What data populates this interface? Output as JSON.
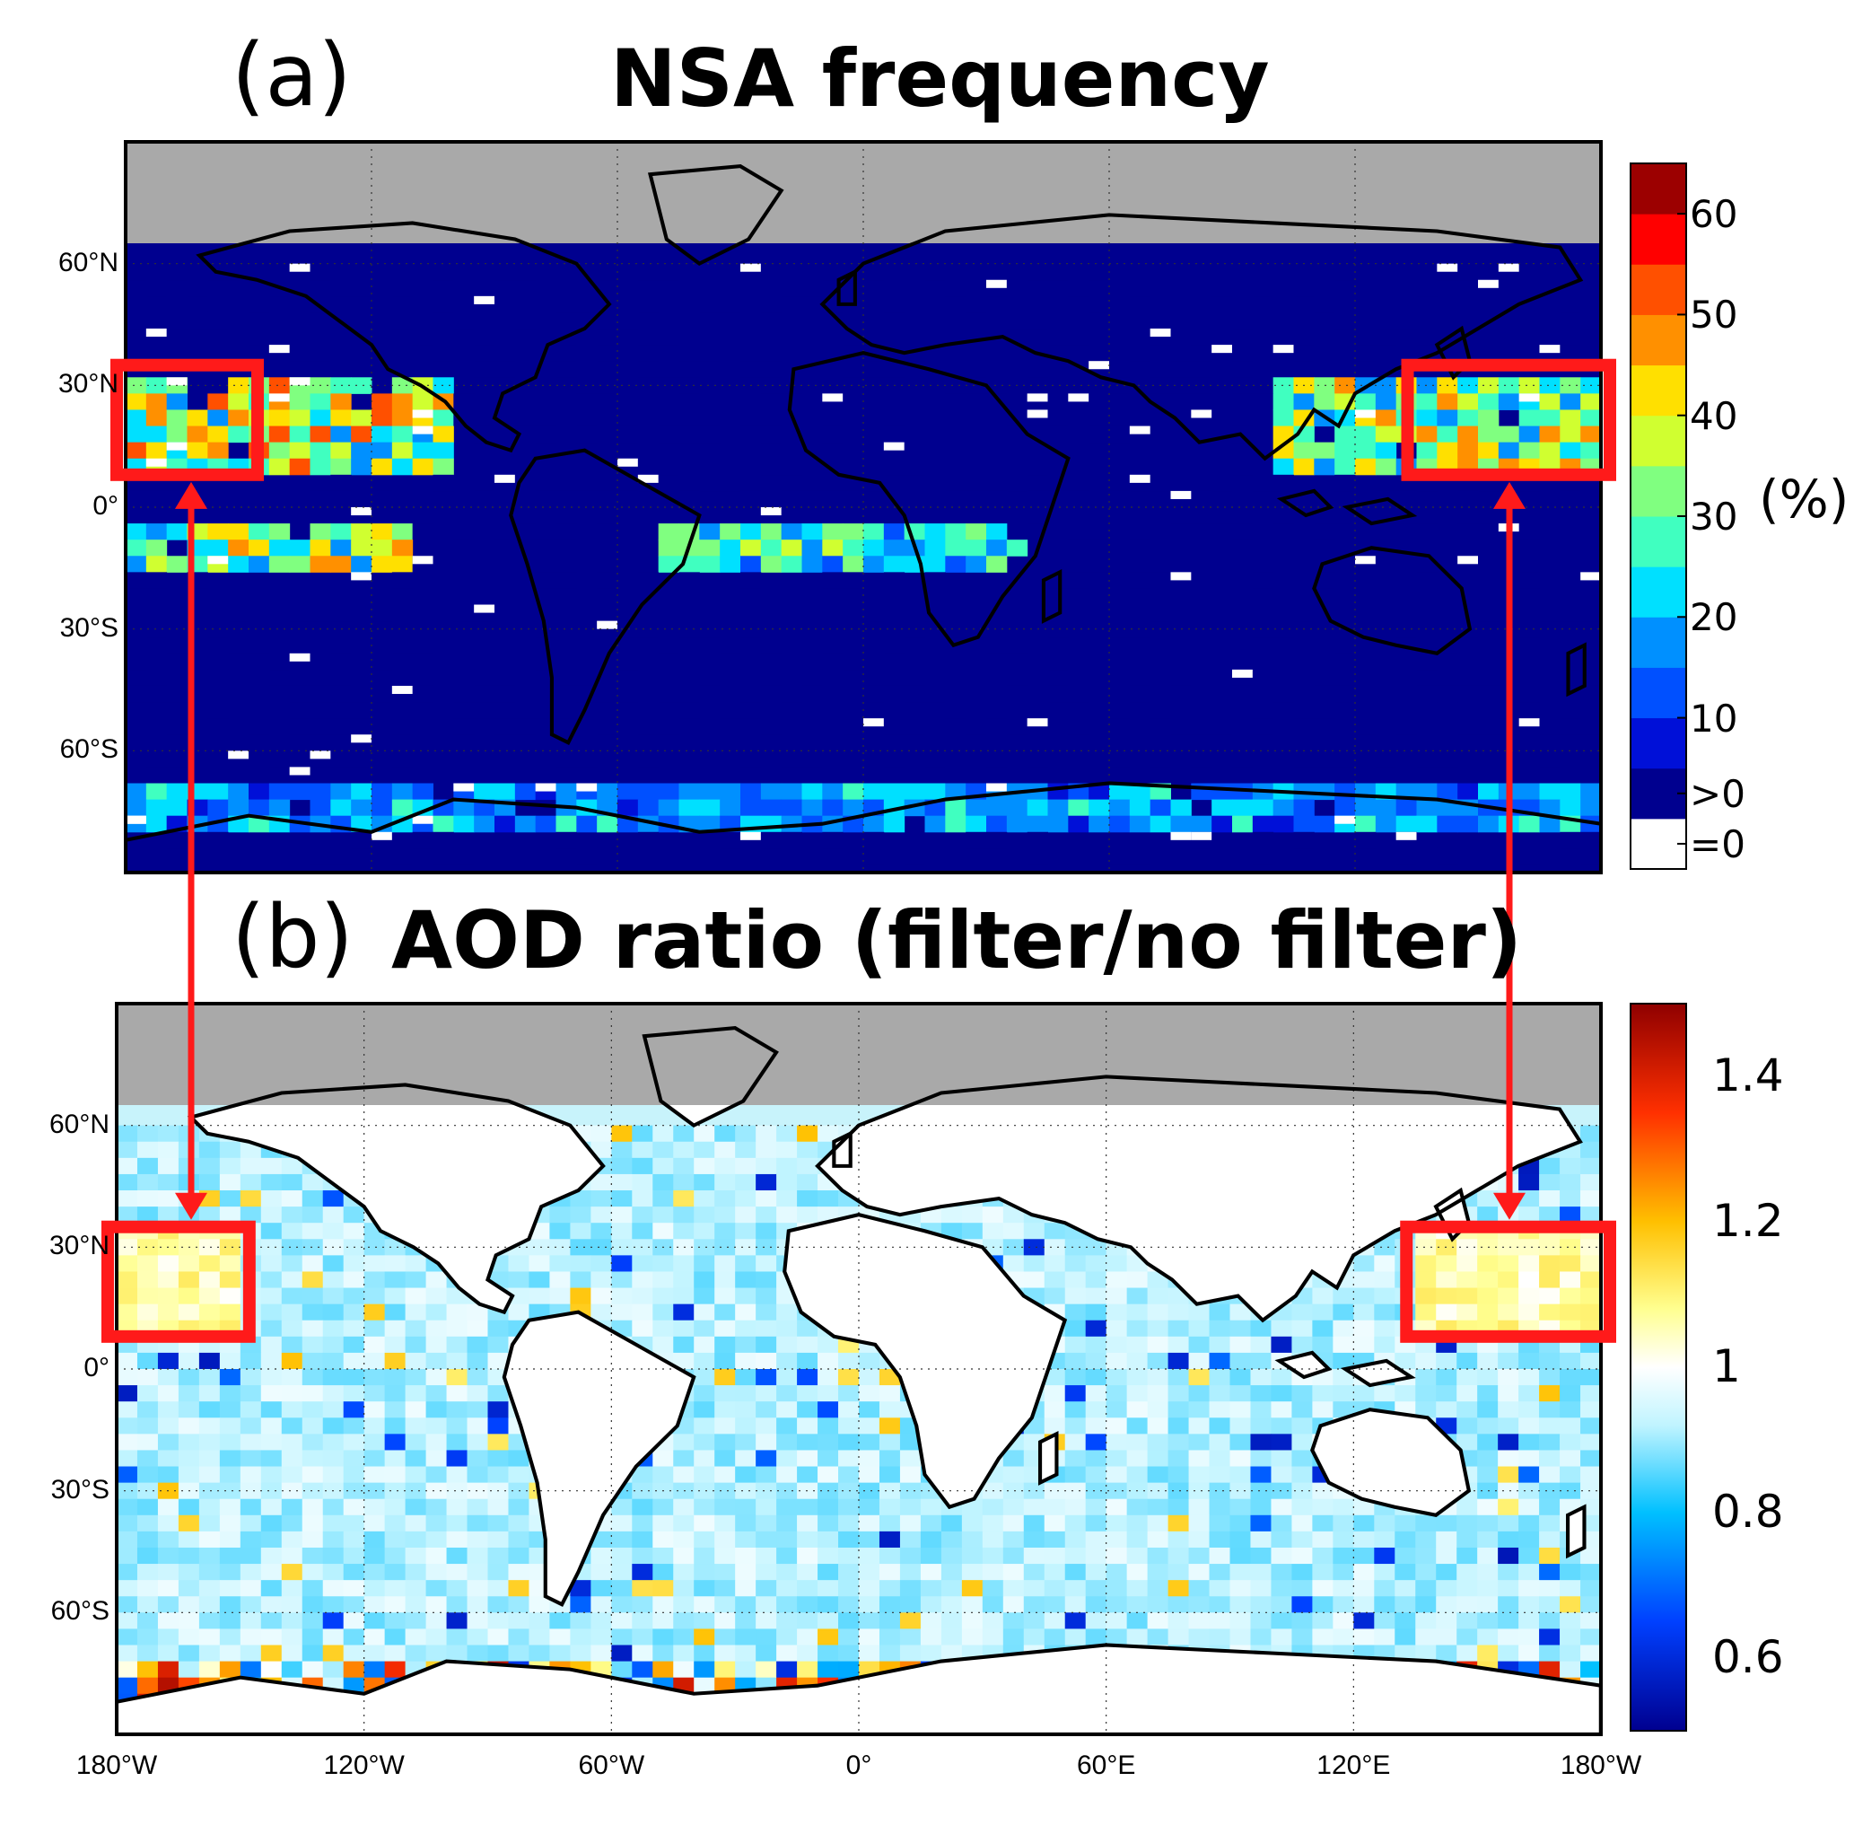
{
  "colors": {
    "land_mask": "#a9a9a9",
    "highlight_box": "#ff1a1a",
    "coastline": "#000000"
  },
  "chart_data": [
    {
      "type": "heatmap",
      "panel_label": "(a)",
      "title": "NSA frequency",
      "projection": "equirectangular",
      "lon_range": [
        -180,
        180
      ],
      "lat_range": [
        -90,
        90
      ],
      "valid_lat_range": [
        -90,
        60
      ],
      "y_ticks": [
        {
          "value": 60,
          "label": "60°N"
        },
        {
          "value": 30,
          "label": "30°N"
        },
        {
          "value": 0,
          "label": "0°"
        },
        {
          "value": -30,
          "label": "30°S"
        },
        {
          "value": -60,
          "label": "60°S"
        }
      ],
      "grid": "dotted",
      "colorbar": {
        "unit": "(%)",
        "type": "discrete",
        "tick_labels": [
          "60",
          "50",
          "40",
          "30",
          "20",
          "10",
          ">0",
          "=0"
        ],
        "bins": [
          {
            "label": "=0",
            "color": "#ffffff"
          },
          {
            "label": ">0-5",
            "color": "#00008f"
          },
          {
            "label": "5-10",
            "color": "#0010d8"
          },
          {
            "label": "10-15",
            "color": "#0050ff"
          },
          {
            "label": "15-20",
            "color": "#0090ff"
          },
          {
            "label": "20-25",
            "color": "#00e0ff"
          },
          {
            "label": "25-30",
            "color": "#40ffc0"
          },
          {
            "label": "30-35",
            "color": "#80ff80"
          },
          {
            "label": "35-40",
            "color": "#d0ff30"
          },
          {
            "label": "40-45",
            "color": "#ffe000"
          },
          {
            "label": "45-50",
            "color": "#ff9000"
          },
          {
            "label": "50-55",
            "color": "#ff5000"
          },
          {
            "label": "55-60",
            "color": "#ff0000"
          },
          {
            "label": ">60",
            "color": "#9c0000"
          }
        ]
      },
      "highlight_regions": [
        {
          "lon": [
            -180,
            -150
          ],
          "lat": [
            8,
            35
          ]
        },
        {
          "lon": [
            135,
            180
          ],
          "lat": [
            8,
            35
          ]
        }
      ],
      "features": [
        {
          "name": "north-pacific-band",
          "lat": [
            10,
            30
          ],
          "lon": [
            -180,
            -100
          ],
          "typical_value": 45
        },
        {
          "name": "southern-itcz-band",
          "lat": [
            -15,
            -5
          ],
          "lon": [
            -180,
            -110
          ],
          "typical_value": 40
        },
        {
          "name": "west-pacific-band",
          "lat": [
            8,
            32
          ],
          "lon": [
            100,
            180
          ],
          "typical_value": 40
        },
        {
          "name": "indian-ocean-band",
          "lat": [
            -15,
            -5
          ],
          "lon": [
            -50,
            40
          ],
          "typical_value": 30
        },
        {
          "name": "southern-ocean-band",
          "lat": [
            -80,
            -70
          ],
          "lon": [
            -180,
            180
          ],
          "typical_value": 22
        }
      ]
    },
    {
      "type": "heatmap",
      "panel_label": "(b)",
      "title": "AOD ratio (filter/no filter)",
      "projection": "equirectangular",
      "lon_range": [
        -180,
        180
      ],
      "lat_range": [
        -90,
        90
      ],
      "valid_lat_range": [
        -90,
        60
      ],
      "y_ticks": [
        {
          "value": 60,
          "label": "60°N"
        },
        {
          "value": 30,
          "label": "30°N"
        },
        {
          "value": 0,
          "label": "0°"
        },
        {
          "value": -30,
          "label": "30°S"
        },
        {
          "value": -60,
          "label": "60°S"
        }
      ],
      "x_ticks": [
        {
          "value": -180,
          "label": "180°W"
        },
        {
          "value": -120,
          "label": "120°W"
        },
        {
          "value": -60,
          "label": "60°W"
        },
        {
          "value": 0,
          "label": "0°"
        },
        {
          "value": 60,
          "label": "60°E"
        },
        {
          "value": 120,
          "label": "120°E"
        },
        {
          "value": 180,
          "label": "180°W"
        }
      ],
      "grid": "dotted",
      "colorbar": {
        "type": "continuous",
        "range": [
          0.5,
          1.5
        ],
        "tick_labels": [
          "1.4",
          "1.2",
          "1",
          "0.8",
          "0.6"
        ],
        "tick_values": [
          1.4,
          1.2,
          1.0,
          0.8,
          0.6
        ],
        "stops": [
          {
            "value": 0.5,
            "color": "#00008f"
          },
          {
            "value": 0.65,
            "color": "#0040ff"
          },
          {
            "value": 0.8,
            "color": "#00c0ff"
          },
          {
            "value": 0.92,
            "color": "#c0f4ff"
          },
          {
            "value": 1.0,
            "color": "#ffffff"
          },
          {
            "value": 1.08,
            "color": "#ffff90"
          },
          {
            "value": 1.2,
            "color": "#ffc000"
          },
          {
            "value": 1.35,
            "color": "#ff3000"
          },
          {
            "value": 1.5,
            "color": "#8f0000"
          }
        ]
      },
      "highlight_regions": [
        {
          "lon": [
            -180,
            -150
          ],
          "lat": [
            8,
            35
          ]
        },
        {
          "lon": [
            135,
            180
          ],
          "lat": [
            8,
            35
          ]
        }
      ],
      "typical_ocean_value": 0.92
    }
  ]
}
